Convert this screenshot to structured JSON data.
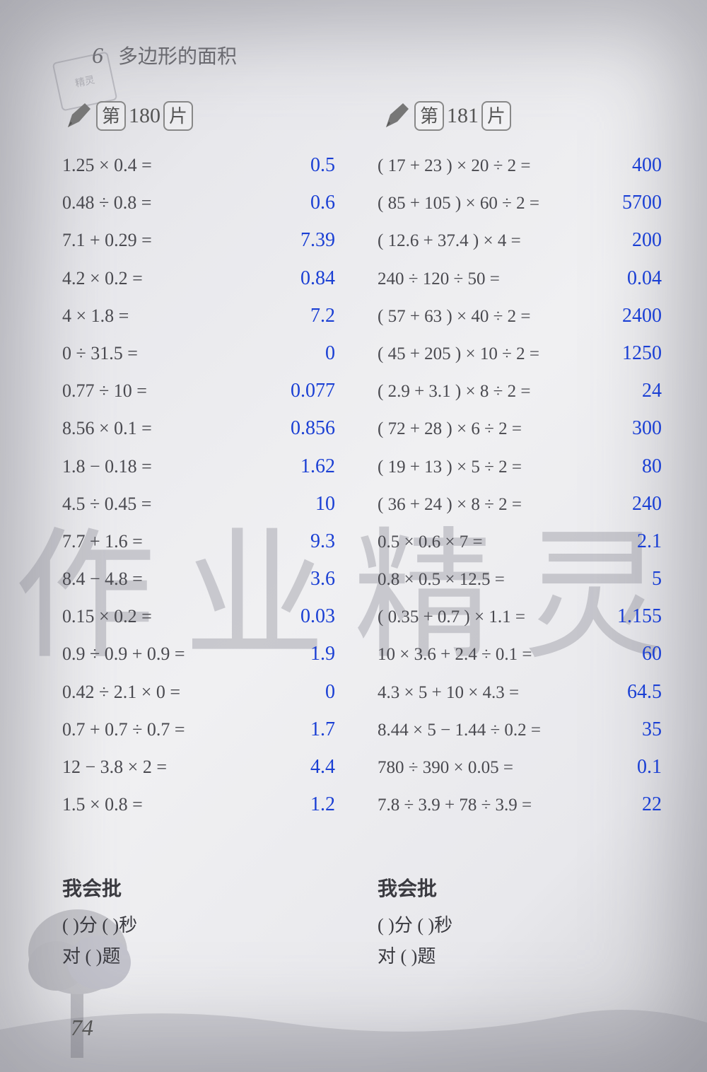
{
  "chapter": {
    "num": "6",
    "title": "多边形的面积"
  },
  "stamp": "精灵",
  "watermark": "作业精灵",
  "badges": {
    "left": {
      "di": "第",
      "num": "180",
      "pian": "片"
    },
    "right": {
      "di": "第",
      "num": "181",
      "pian": "片"
    }
  },
  "left_problems": [
    {
      "q": "1.25 × 0.4 =",
      "a": "0.5"
    },
    {
      "q": "0.48 ÷ 0.8 =",
      "a": "0.6"
    },
    {
      "q": "7.1 + 0.29 =",
      "a": "7.39"
    },
    {
      "q": "4.2 × 0.2 =",
      "a": "0.84"
    },
    {
      "q": "4 × 1.8 =",
      "a": "7.2"
    },
    {
      "q": "0 ÷ 31.5 =",
      "a": "0"
    },
    {
      "q": "0.77 ÷ 10 =",
      "a": "0.077"
    },
    {
      "q": "8.56 × 0.1 =",
      "a": "0.856"
    },
    {
      "q": "1.8 − 0.18 =",
      "a": "1.62"
    },
    {
      "q": "4.5 ÷ 0.45 =",
      "a": "10"
    },
    {
      "q": "7.7 + 1.6 =",
      "a": "9.3"
    },
    {
      "q": "8.4 − 4.8 =",
      "a": "3.6"
    },
    {
      "q": "0.15 × 0.2 =",
      "a": "0.03"
    },
    {
      "q": "0.9 ÷ 0.9 + 0.9 =",
      "a": "1.9"
    },
    {
      "q": "0.42 ÷ 2.1 × 0 =",
      "a": "0"
    },
    {
      "q": "0.7 + 0.7 ÷ 0.7 =",
      "a": "1.7"
    },
    {
      "q": "12 − 3.8 × 2 =",
      "a": "4.4"
    },
    {
      "q": "1.5 × 0.8 =",
      "a": "1.2"
    }
  ],
  "right_problems": [
    {
      "q": "( 17 + 23 ) × 20 ÷ 2 =",
      "a": "400"
    },
    {
      "q": "( 85 + 105 ) × 60 ÷ 2 =",
      "a": "5700"
    },
    {
      "q": "( 12.6 + 37.4 ) × 4 =",
      "a": "200"
    },
    {
      "q": "240 ÷ 120 ÷ 50 =",
      "a": "0.04"
    },
    {
      "q": "( 57 + 63 ) × 40 ÷ 2 =",
      "a": "2400"
    },
    {
      "q": "( 45 + 205 ) × 10 ÷ 2 =",
      "a": "1250"
    },
    {
      "q": "( 2.9 + 3.1 ) × 8 ÷ 2 =",
      "a": "24"
    },
    {
      "q": "( 72 + 28 ) × 6 ÷ 2 =",
      "a": "300"
    },
    {
      "q": "( 19 + 13 ) × 5 ÷ 2 =",
      "a": "80"
    },
    {
      "q": "( 36 + 24 ) × 8 ÷ 2 =",
      "a": "240"
    },
    {
      "q": "0.5 × 0.6 × 7 =",
      "a": "2.1"
    },
    {
      "q": "0.8 × 0.5 × 12.5 =",
      "a": "5"
    },
    {
      "q": "( 0.35 + 0.7 ) × 1.1 =",
      "a": "1.155"
    },
    {
      "q": "10 × 3.6 + 2.4 ÷ 0.1 =",
      "a": "60"
    },
    {
      "q": "4.3 × 5 + 10 × 4.3 =",
      "a": "64.5"
    },
    {
      "q": "8.44 × 5 − 1.44 ÷ 0.2 =",
      "a": "35"
    },
    {
      "q": "780 ÷ 390 × 0.05 =",
      "a": "0.1"
    },
    {
      "q": "7.8 ÷ 3.9 + 78 ÷ 3.9 =",
      "a": "22"
    }
  ],
  "grading": {
    "title": "我会批",
    "line1_a": "(      )分 (      )秒",
    "line2_a": "对 (      )题"
  },
  "page_number": "74",
  "colors": {
    "answer": "#1a3fd4",
    "problem": "#4a4a50",
    "bg_light": "#f0f0f2",
    "bg_dark": "#d0d0d4"
  }
}
